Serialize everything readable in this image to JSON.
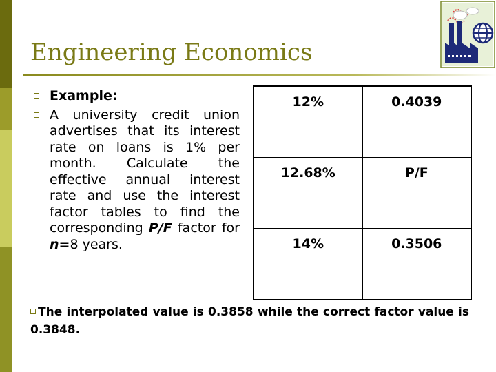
{
  "slide": {
    "title": "Engineering Economics",
    "accent_color": "#7a7a16"
  },
  "logo": {
    "icon": "factory-globe-logo-icon"
  },
  "bullets": {
    "example_label": "Example:",
    "problem_text_1": "A university credit union advertises that its interest rate on loans is 1% per month. Calculate the effective annual interest rate and use the interest factor tables to find the corresponding ",
    "problem_pf": "P/F",
    "problem_text_2": " factor for ",
    "problem_n": "n",
    "problem_text_3": "=8 years."
  },
  "table": {
    "rows": [
      {
        "rate": "12%",
        "value": "0.4039"
      },
      {
        "rate": "12.68%",
        "value": "P/F"
      },
      {
        "rate": "14%",
        "value": "0.3506"
      }
    ]
  },
  "note": {
    "text": "The interpolated value is 0.3858 while the correct factor value is 0.3848."
  }
}
